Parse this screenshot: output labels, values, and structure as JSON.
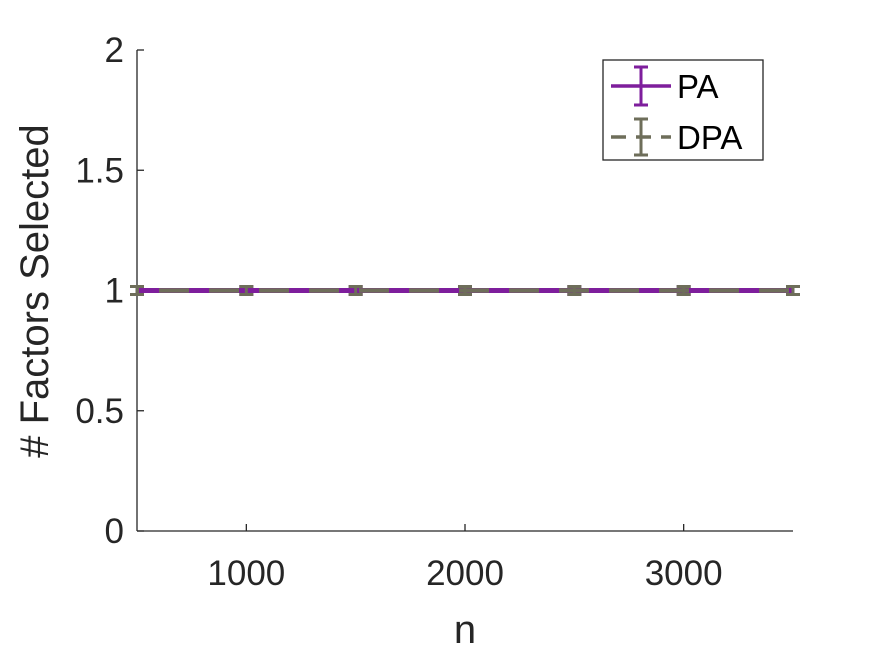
{
  "chart_data": {
    "type": "line",
    "title": "",
    "xlabel": "n",
    "ylabel": "# Factors Selected",
    "xlim": [
      500,
      3500
    ],
    "ylim": [
      0,
      2
    ],
    "xticks": [
      1000,
      2000,
      3000
    ],
    "xtick_labels": [
      "1000",
      "2000",
      "3000"
    ],
    "yticks": [
      0,
      0.5,
      1,
      1.5,
      2
    ],
    "ytick_labels": [
      "0",
      "0.5",
      "1",
      "1.5",
      "2"
    ],
    "grid": false,
    "legend_position": "top-right",
    "x": [
      500,
      1000,
      1500,
      2000,
      2500,
      3000,
      3500
    ],
    "series": [
      {
        "name": "PA",
        "values": [
          1,
          1,
          1,
          1,
          1,
          1,
          1
        ],
        "error": [
          0,
          0,
          0,
          0,
          0,
          0,
          0
        ],
        "color": "#7E1E9C",
        "style": "solid"
      },
      {
        "name": "DPA",
        "values": [
          1,
          1,
          1,
          1,
          1,
          1,
          1
        ],
        "error": [
          0,
          0,
          0,
          0,
          0,
          0,
          0
        ],
        "color": "#6E6E5A",
        "style": "dashed"
      }
    ]
  }
}
